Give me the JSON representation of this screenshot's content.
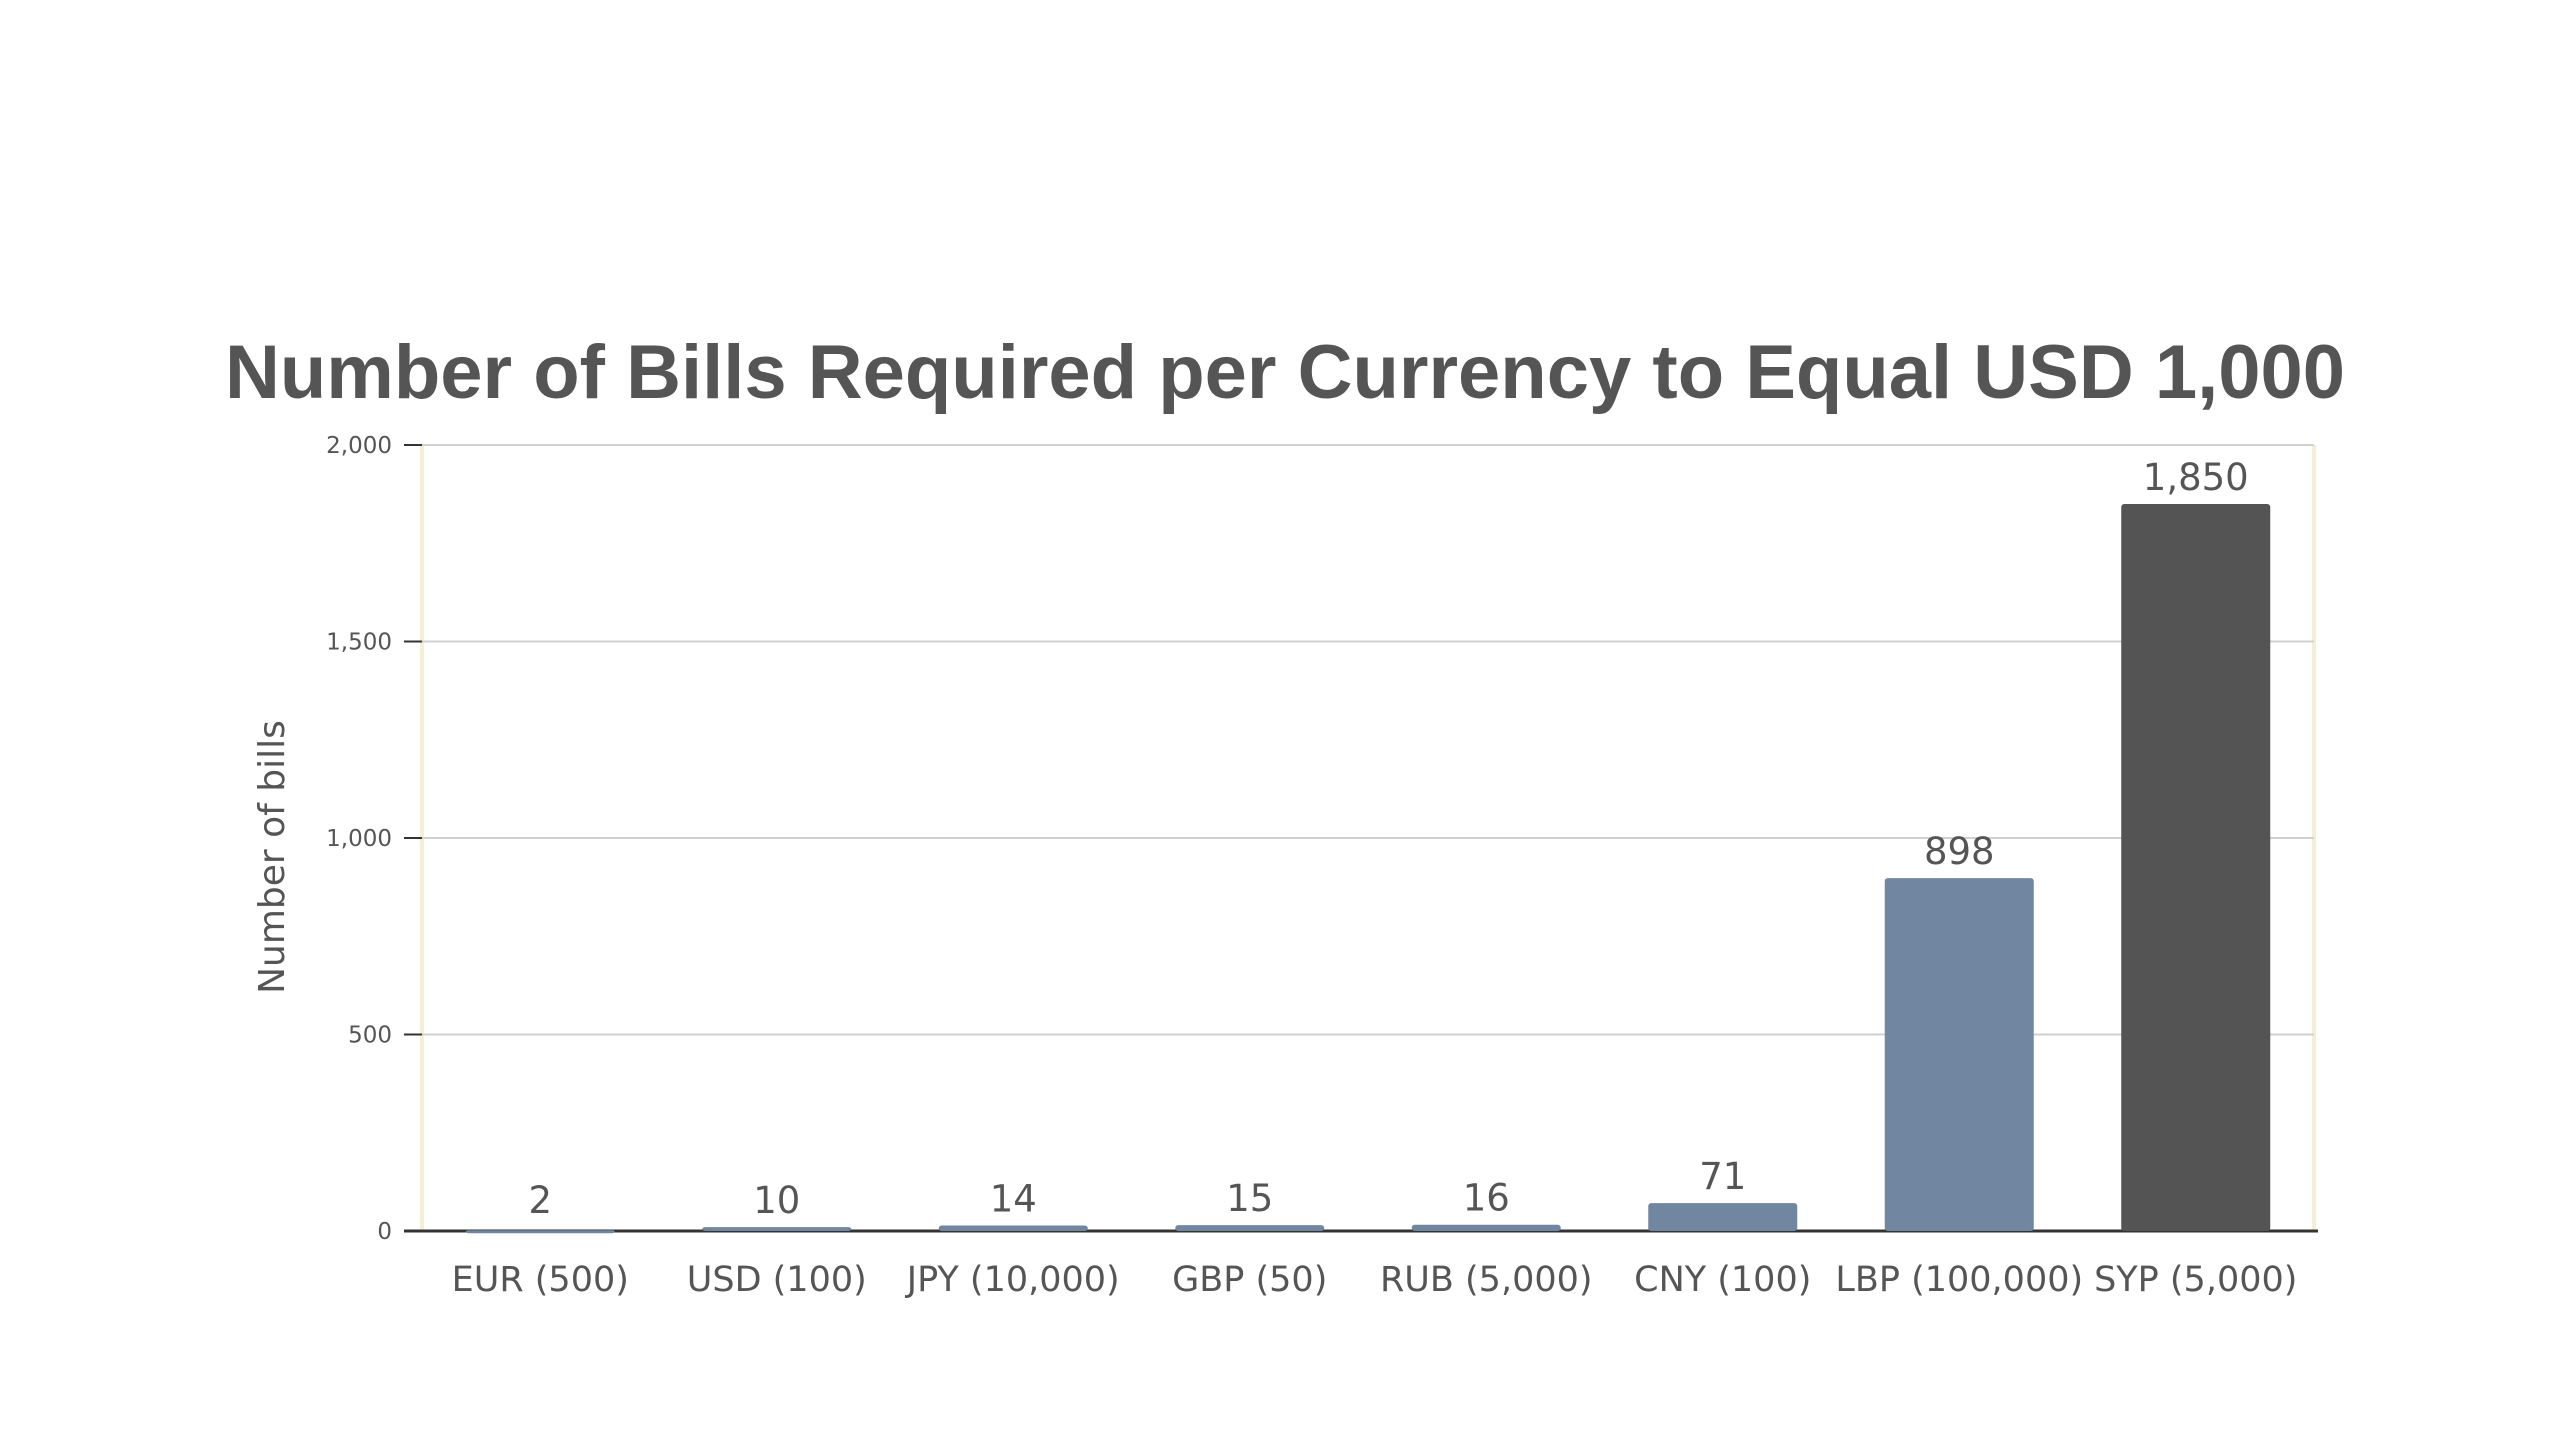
{
  "chart_data": {
    "type": "bar",
    "title": "Number of Bills Required per Currency to Equal USD 1,000",
    "xlabel": "",
    "ylabel": "Number of bills",
    "categories": [
      "EUR (500)",
      "USD (100)",
      "JPY (10,000)",
      "GBP (50)",
      "RUB (5,000)",
      "CNY (100)",
      "LBP (100,000)",
      "SYP (5,000)"
    ],
    "values": [
      2,
      10,
      14,
      15,
      16,
      71,
      898,
      1850
    ],
    "data_labels": [
      "2",
      "10",
      "14",
      "15",
      "16",
      "71",
      "898",
      "1,850"
    ],
    "ylim": [
      0,
      2000
    ],
    "yticks": [
      0,
      500,
      1000,
      1500,
      2000
    ],
    "ytick_labels": [
      "0",
      "500",
      "1,000",
      "1,500",
      "2,000"
    ],
    "grid": true,
    "colors": {
      "bar": "#7186a0",
      "highlight_bar": "#545454",
      "highlight_index": 7,
      "text": "#555555",
      "grid": "#d0d0d0",
      "axis": "#333333",
      "plot_border": "#f5efd8"
    }
  }
}
